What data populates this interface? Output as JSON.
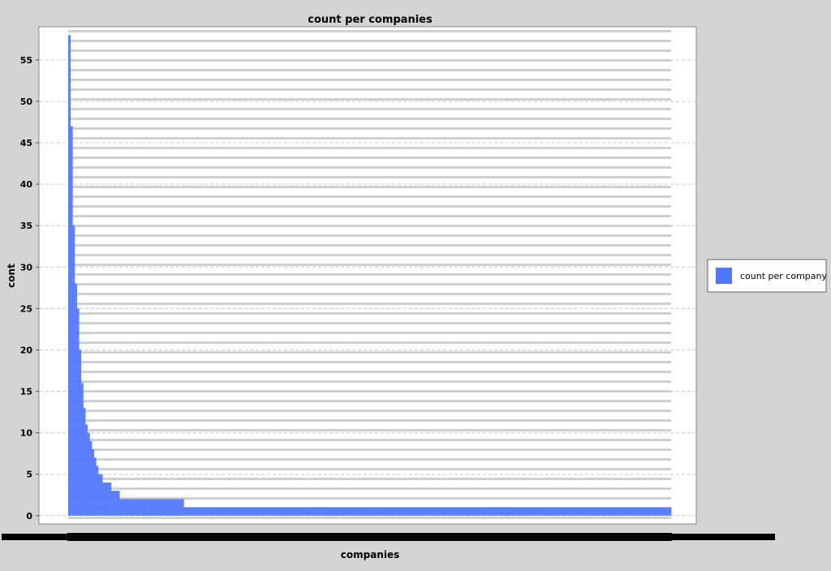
{
  "chart_data": {
    "type": "bar",
    "title": "count per companies",
    "xlabel": "companies",
    "ylabel": "cont",
    "ylim": [
      -1,
      59
    ],
    "yticks": [
      0,
      5,
      10,
      15,
      20,
      25,
      30,
      35,
      40,
      45,
      50,
      55
    ],
    "grid": true,
    "legend_position": "right",
    "series": [
      {
        "name": "count per company",
        "color": "#5076ff",
        "values": [
          58,
          47,
          35,
          28,
          25,
          20,
          16,
          13,
          11,
          10,
          9,
          8,
          7,
          6,
          5,
          5,
          4,
          4,
          4,
          4,
          3,
          3,
          3,
          3,
          2,
          2,
          2,
          2,
          2,
          2,
          2,
          2,
          2,
          2,
          2,
          2,
          2,
          2,
          2,
          2,
          2,
          2,
          2,
          2,
          2,
          2,
          2,
          2,
          2,
          2,
          2,
          2,
          2,
          2,
          1,
          1,
          1,
          1,
          1,
          1,
          1,
          1,
          1,
          1,
          1,
          1,
          1,
          1,
          1,
          1,
          1,
          1,
          1,
          1,
          1,
          1,
          1,
          1,
          1,
          1,
          1,
          1,
          1,
          1,
          1,
          1,
          1,
          1,
          1,
          1,
          1,
          1,
          1,
          1,
          1,
          1,
          1,
          1,
          1,
          1,
          1,
          1,
          1,
          1,
          1,
          1,
          1,
          1,
          1,
          1,
          1,
          1,
          1,
          1,
          1,
          1,
          1,
          1,
          1,
          1,
          1,
          1,
          1,
          1,
          1,
          1,
          1,
          1,
          1,
          1,
          1,
          1,
          1,
          1,
          1,
          1,
          1,
          1,
          1,
          1,
          1,
          1,
          1,
          1,
          1,
          1,
          1,
          1,
          1,
          1,
          1,
          1,
          1,
          1,
          1,
          1,
          1,
          1,
          1,
          1,
          1,
          1,
          1,
          1,
          1,
          1,
          1,
          1,
          1,
          1,
          1,
          1,
          1,
          1,
          1,
          1,
          1,
          1,
          1,
          1,
          1,
          1,
          1,
          1,
          1,
          1,
          1,
          1,
          1,
          1,
          1,
          1,
          1,
          1,
          1,
          1,
          1,
          1,
          1,
          1,
          1,
          1,
          1,
          1,
          1,
          1,
          1,
          1,
          1,
          1,
          1,
          1,
          1,
          1,
          1,
          1,
          1,
          1,
          1,
          1,
          1,
          1,
          1,
          1,
          1,
          1,
          1,
          1,
          1,
          1,
          1,
          1,
          1,
          1,
          1,
          1,
          1,
          1,
          1,
          1,
          1,
          1,
          1,
          1,
          1,
          1,
          1,
          1,
          1,
          1,
          1,
          1,
          1,
          1,
          1,
          1,
          1,
          1,
          1,
          1,
          1,
          1,
          1,
          1,
          1,
          1,
          1,
          1,
          1,
          1,
          1,
          1,
          1,
          1,
          1,
          1,
          1,
          1,
          1,
          1,
          1,
          1
        ]
      }
    ]
  }
}
